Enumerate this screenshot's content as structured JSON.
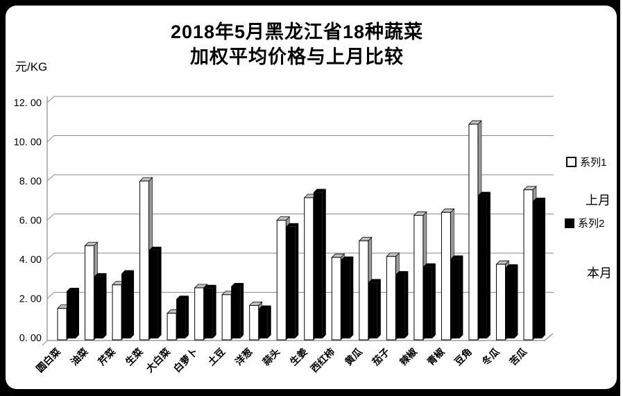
{
  "chart": {
    "title_line1": "2018年5月黑龙江省18种蔬菜",
    "title_line2": "加权平均价格与上月比较",
    "unit_label": "元/KG",
    "legend": {
      "series1": "系列1",
      "series1_note": "上月",
      "series2": "系列2",
      "series2_note": "本月"
    }
  },
  "chart_data": {
    "type": "bar",
    "style": "3d-clustered-column",
    "title": "2018年5月黑龙江省18种蔬菜 加权平均价格与上月比较",
    "ylabel": "元/KG",
    "xlabel": "",
    "ylim": [
      0,
      12
    ],
    "ytick_step": 2,
    "ytick_labels": [
      "0. 00",
      "2. 00",
      "4. 00",
      "6. 00",
      "8. 00",
      "10. 00",
      "12. 00"
    ],
    "grid": true,
    "legend_position": "right",
    "legend_entries": [
      "系列1 (上月)",
      "系列2 (本月)"
    ],
    "categories": [
      "圆白菜",
      "油菜",
      "芹菜",
      "生菜",
      "大白菜",
      "白萝卜",
      "土豆",
      "洋葱",
      "蒜头",
      "生姜",
      "西红柿",
      "黄瓜",
      "茄子",
      "辣椒",
      "青椒",
      "豆角",
      "冬瓜",
      "苦瓜"
    ],
    "series": [
      {
        "name": "系列1",
        "meaning": "上月",
        "color": "#ffffff",
        "values": [
          1.5,
          4.7,
          2.7,
          8.0,
          1.25,
          2.55,
          2.2,
          1.65,
          6.0,
          7.15,
          4.1,
          4.95,
          4.15,
          6.25,
          6.4,
          10.9,
          3.75,
          7.55
        ]
      },
      {
        "name": "系列2",
        "meaning": "本月",
        "color": "#000000",
        "values": [
          2.3,
          3.05,
          3.2,
          4.4,
          1.9,
          2.45,
          2.55,
          1.4,
          5.6,
          7.35,
          3.9,
          2.75,
          3.15,
          3.55,
          3.95,
          7.2,
          3.5,
          6.9
        ]
      }
    ],
    "colors": {
      "bar_cap_gray": "#c2c2c2",
      "bar_side_gray": "#9a9a9a",
      "gridline": "#8a8a8a",
      "axis": "#8a8a8a",
      "text": "#000000",
      "frame_bg": "#000000",
      "card_bg": "#ffffff"
    }
  }
}
